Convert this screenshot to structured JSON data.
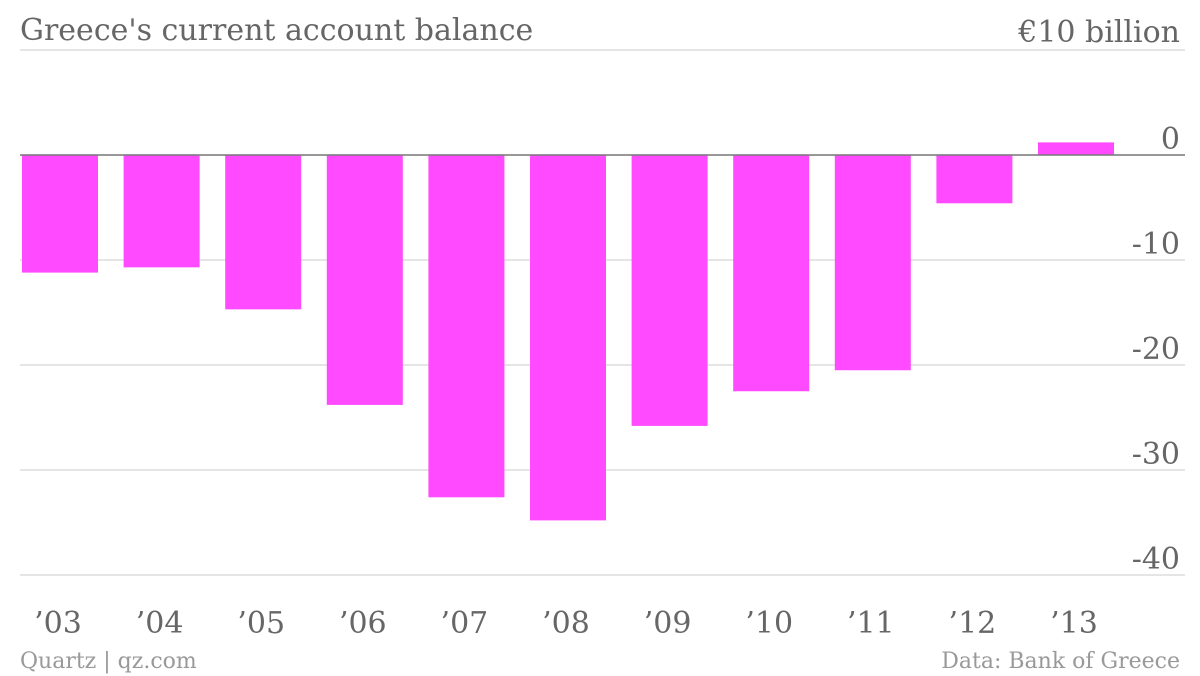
{
  "colors": {
    "bar": "#ff4aff",
    "text": "#666666",
    "footer": "#999999",
    "grid": "#e5e5e5",
    "zero_line": "#777777"
  },
  "chart_data": {
    "type": "bar",
    "title": "Greece's current account balance",
    "unit_label": "€10 billion",
    "categories": [
      "’03",
      "’04",
      "’05",
      "’06",
      "’07",
      "’08",
      "’09",
      "’10",
      "’11",
      "’12",
      "’13"
    ],
    "values": [
      -11.2,
      -10.7,
      -14.7,
      -23.8,
      -32.6,
      -34.8,
      -25.8,
      -22.5,
      -20.5,
      -4.6,
      1.2
    ],
    "y_ticks": [
      0,
      -10,
      -20,
      -30,
      -40
    ],
    "y_tick_labels": [
      "0",
      "-10",
      "-20",
      "-30",
      "-40"
    ],
    "ylim": [
      -40,
      10
    ],
    "grid": true,
    "y_axis_position": "right"
  },
  "footer": {
    "source_left": "Quartz | qz.com",
    "source_right": "Data: Bank of Greece"
  }
}
